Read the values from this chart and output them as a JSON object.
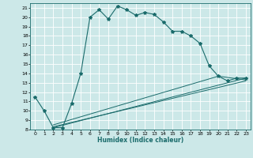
{
  "xlabel": "Humidex (Indice chaleur)",
  "bg_color": "#cce8e8",
  "line_color": "#1a6b6b",
  "grid_color": "#ffffff",
  "xlim": [
    -0.5,
    23.5
  ],
  "ylim": [
    8,
    21.5
  ],
  "yticks": [
    8,
    9,
    10,
    11,
    12,
    13,
    14,
    15,
    16,
    17,
    18,
    19,
    20,
    21
  ],
  "xticks": [
    0,
    1,
    2,
    3,
    4,
    5,
    6,
    7,
    8,
    9,
    10,
    11,
    12,
    13,
    14,
    15,
    16,
    17,
    18,
    19,
    20,
    21,
    22,
    23
  ],
  "main_x": [
    0,
    1,
    2,
    3,
    4,
    5,
    6,
    7,
    8,
    9,
    10,
    11,
    12,
    13,
    14,
    15,
    16,
    17,
    18,
    19,
    20,
    21,
    22,
    23
  ],
  "main_y": [
    11.5,
    10.0,
    8.2,
    8.2,
    10.8,
    14.0,
    20.0,
    20.8,
    19.8,
    21.2,
    20.8,
    20.2,
    20.5,
    20.3,
    19.5,
    18.5,
    18.5,
    18.0,
    17.2,
    14.8,
    13.7,
    13.2,
    13.5,
    13.5
  ],
  "line2_x": [
    2,
    23
  ],
  "line2_y": [
    8.2,
    13.5
  ],
  "line3_x": [
    2,
    23
  ],
  "line3_y": [
    8.3,
    13.2
  ],
  "line4_x": [
    2,
    20,
    23
  ],
  "line4_y": [
    8.5,
    13.7,
    13.3
  ]
}
